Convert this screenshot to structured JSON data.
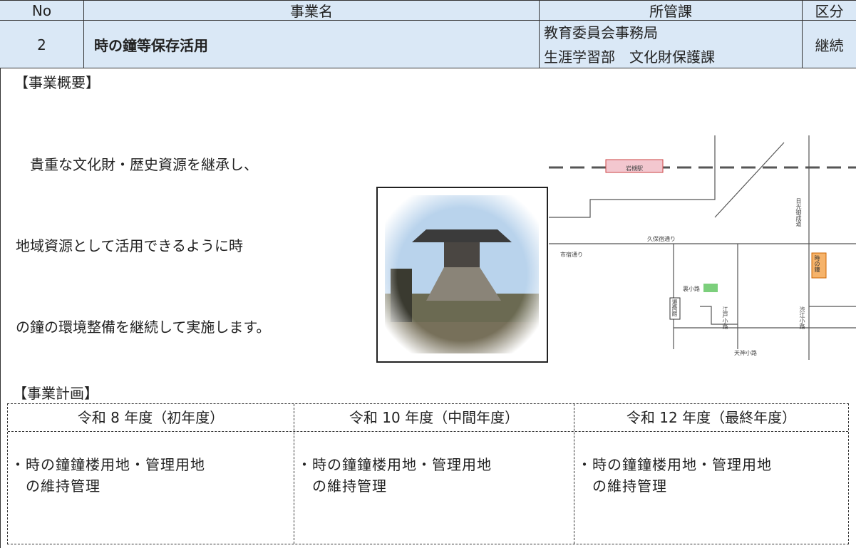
{
  "header_table": {
    "columns": [
      "No",
      "事業名",
      "所管課",
      "区分"
    ],
    "row": {
      "no": "2",
      "name": "時の鐘等保存活用",
      "department": [
        "教育委員会事務局",
        "生涯学習部　文化財保護課"
      ],
      "category": "継続"
    }
  },
  "overview": {
    "heading": "【事業概要】",
    "lines": [
      "　貴重な文化財・歴史資源を継承し、",
      "地域資源として活用できるように時",
      "の鐘の環境整備を継続して実施します。"
    ]
  },
  "map": {
    "labels": [
      "岩槻駅",
      "久保宿通り",
      "市宿通り",
      "裏小路",
      "遷喬館",
      "江戸小路",
      "天神小路",
      "渋江小路",
      "日光御成道",
      "時の鐘"
    ]
  },
  "plan": {
    "heading": "【事業計画】",
    "columns": [
      "令和 8 年度（初年度）",
      "令和 10 年度（中間年度）",
      "令和 12 年度（最終年度）"
    ],
    "items": [
      [
        "・時の鐘鐘楼用地・管理用地",
        "　の維持管理"
      ],
      [
        "・時の鐘鐘楼用地・管理用地",
        "　の維持管理"
      ],
      [
        "・時の鐘鐘楼用地・管理用地",
        "　の維持管理"
      ]
    ]
  }
}
